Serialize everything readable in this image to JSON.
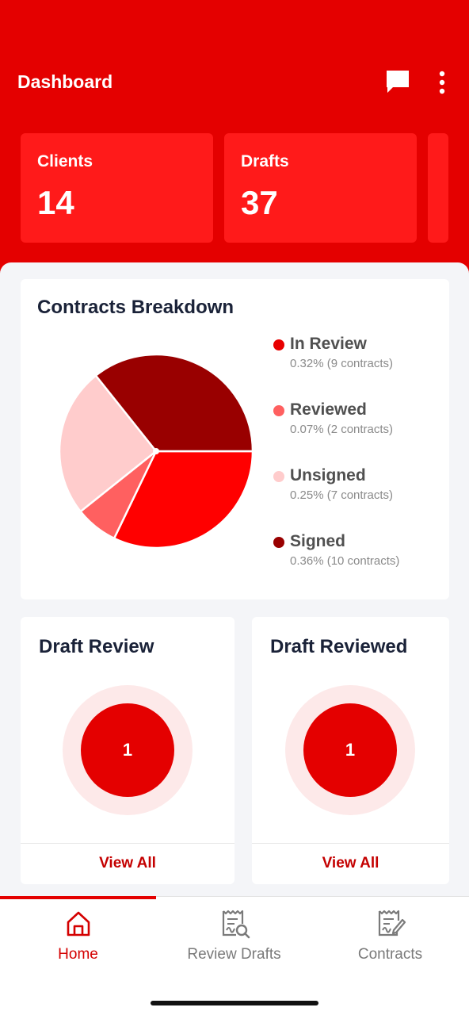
{
  "header": {
    "title": "Dashboard",
    "chat_icon": "chat-icon",
    "more_icon": "more-vertical-icon"
  },
  "stats": [
    {
      "label": "Clients",
      "value": "14"
    },
    {
      "label": "Drafts",
      "value": "37"
    }
  ],
  "breakdown": {
    "title": "Contracts Breakdown",
    "legend": [
      {
        "name": "In Review",
        "detail": "0.32% (9 contracts)",
        "color": "#e80000"
      },
      {
        "name": "Reviewed",
        "detail": "0.07% (2 contracts)",
        "color": "#ff6060"
      },
      {
        "name": "Unsigned",
        "detail": "0.25% (7 contracts)",
        "color": "#ffcccc"
      },
      {
        "name": "Signed",
        "detail": "0.36% (10 contracts)",
        "color": "#990000"
      }
    ]
  },
  "chart_data": {
    "type": "pie",
    "categories": [
      "In Review",
      "Reviewed",
      "Unsigned",
      "Signed"
    ],
    "values": [
      9,
      2,
      7,
      10
    ],
    "percent_labels": [
      "0.32%",
      "0.07%",
      "0.25%",
      "0.36%"
    ],
    "colors": [
      "#ff0000",
      "#ff6060",
      "#ffcccc",
      "#990000"
    ],
    "legend_position": "right"
  },
  "draft_review": {
    "title": "Draft Review",
    "count": "1",
    "view_all": "View All"
  },
  "draft_reviewed": {
    "title": "Draft Reviewed",
    "count": "1",
    "view_all": "View All"
  },
  "nav": {
    "items": [
      {
        "label": "Home",
        "icon": "home-icon",
        "active": true
      },
      {
        "label": "Review Drafts",
        "icon": "review-document-icon",
        "active": false
      },
      {
        "label": "Contracts",
        "icon": "contract-signature-icon",
        "active": false
      }
    ],
    "active_color": "#d40000",
    "inactive_color": "#7a7a7a"
  }
}
